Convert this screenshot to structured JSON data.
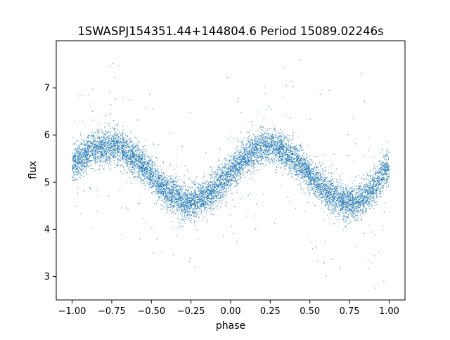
{
  "chart_data": {
    "type": "scatter",
    "title": "1SWASPJ154351.44+144804.6 Period 15089.02246s",
    "xlabel": "phase",
    "ylabel": "flux",
    "xlim": [
      -1.1,
      1.1
    ],
    "ylim": [
      2.5,
      8.0
    ],
    "xticks": [
      -1.0,
      -0.75,
      -0.5,
      -0.25,
      0.0,
      0.25,
      0.5,
      0.75,
      1.0
    ],
    "xtick_labels": [
      "−1.00",
      "−0.75",
      "−0.50",
      "−0.25",
      "0.00",
      "0.25",
      "0.50",
      "0.75",
      "1.00"
    ],
    "yticks": [
      3,
      4,
      5,
      6,
      7
    ],
    "ytick_labels": [
      "3",
      "4",
      "5",
      "6",
      "7"
    ],
    "grid": false,
    "legend": "none",
    "point_color": "#1f77b4",
    "series": [
      {
        "curve_x": [
          -1.0,
          -0.9,
          -0.8,
          -0.75,
          -0.7,
          -0.6,
          -0.5,
          -0.4,
          -0.3,
          -0.25,
          -0.2,
          -0.1,
          0.0,
          0.1,
          0.2,
          0.25,
          0.3,
          0.4,
          0.5,
          0.6,
          0.7,
          0.75,
          0.8,
          0.9,
          1.0
        ],
        "curve_y": [
          5.4,
          5.62,
          5.76,
          5.77,
          5.73,
          5.5,
          5.15,
          4.8,
          4.6,
          4.56,
          4.6,
          4.85,
          5.2,
          5.55,
          5.75,
          5.77,
          5.73,
          5.5,
          5.15,
          4.8,
          4.6,
          4.56,
          4.6,
          4.85,
          5.35
        ],
        "scatter_sd": 0.18
      }
    ]
  }
}
